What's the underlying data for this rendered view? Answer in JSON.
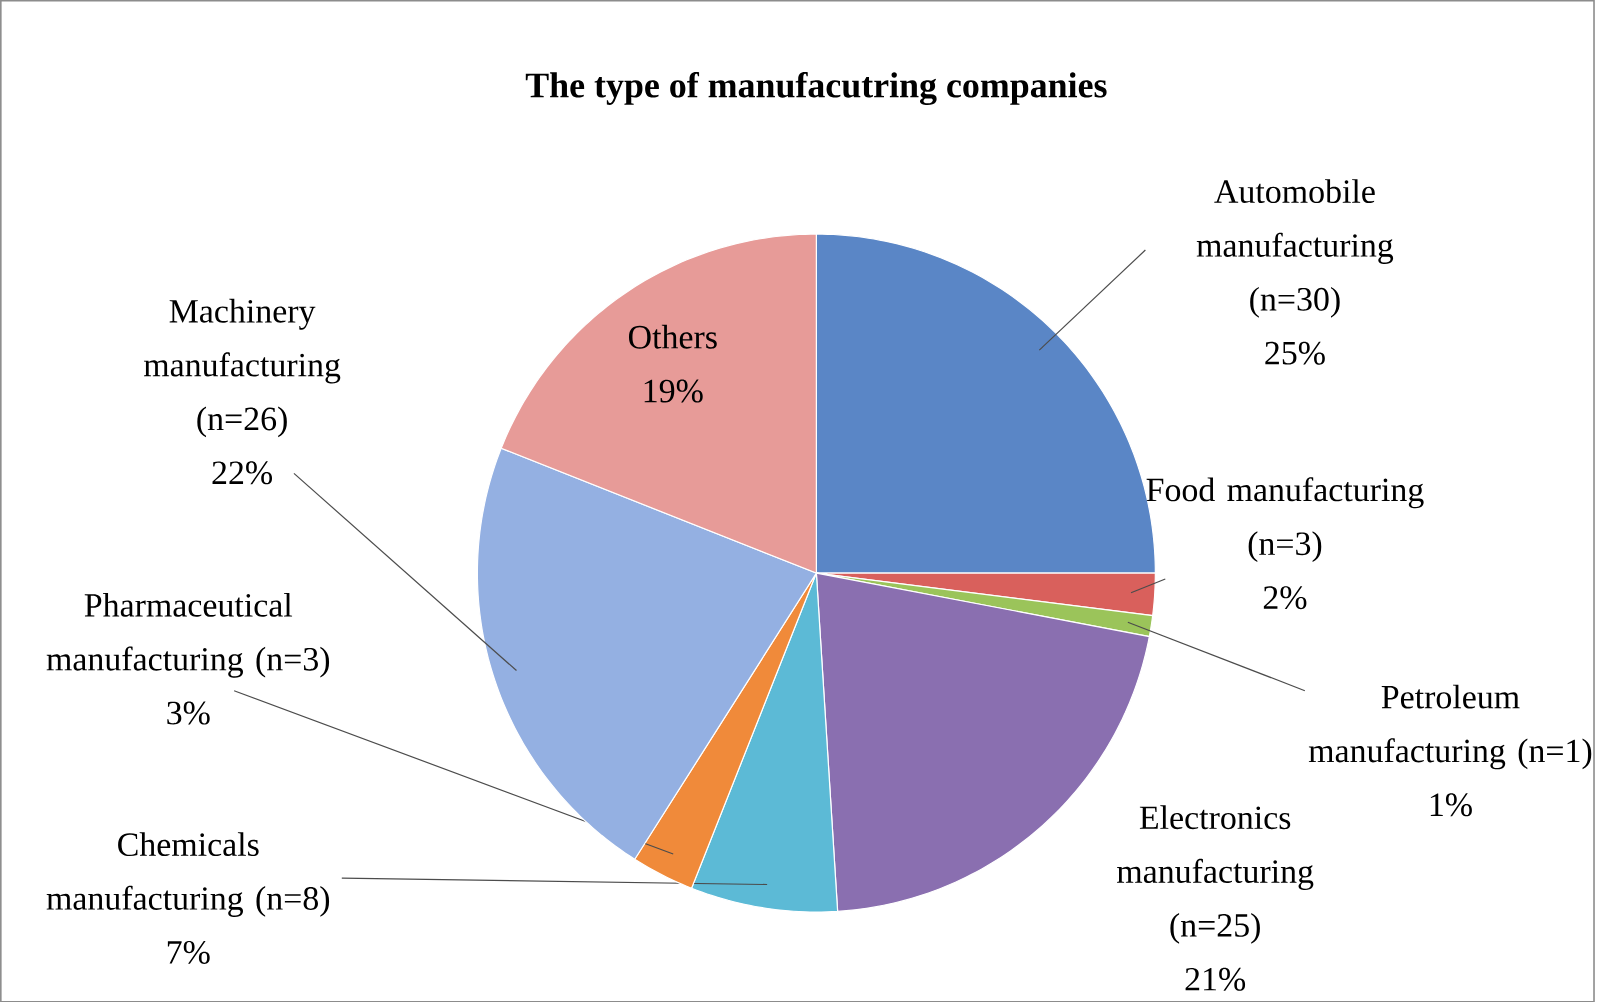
{
  "chart_data": {
    "type": "pie",
    "title": "The type of manufacutring companies",
    "categories": [
      "Automobile manufacturing (n=30)",
      "Food manufacturing (n=3)",
      "Petroleum manufacturing (n=1)",
      "Electronics manufacturing (n=25)",
      "Chemicals manufacturing (n=8)",
      "Pharmaceutical manufacturing (n=3)",
      "Machinery manufacturing (n=26)",
      "Others"
    ],
    "values": [
      25,
      2,
      1,
      21,
      7,
      3,
      22,
      19
    ],
    "value_labels": [
      "25%",
      "2%",
      "1%",
      "21%",
      "7%",
      "3%",
      "22%",
      "19%"
    ],
    "colors": [
      "#5a86c6",
      "#d9605c",
      "#9bc45a",
      "#8a6fb0",
      "#5cbad6",
      "#f08a3a",
      "#94b0e2",
      "#e79b98"
    ]
  }
}
